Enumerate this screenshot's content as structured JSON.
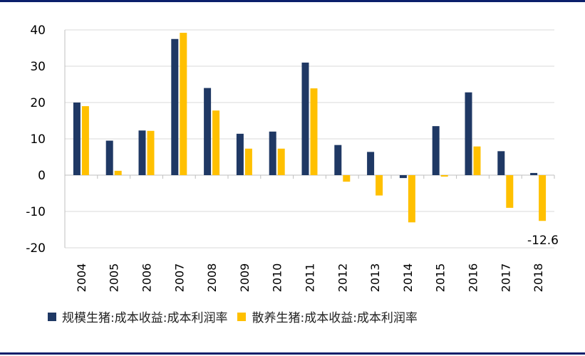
{
  "chart_data": {
    "type": "bar",
    "categories": [
      "2004",
      "2005",
      "2006",
      "2007",
      "2008",
      "2009",
      "2010",
      "2011",
      "2012",
      "2013",
      "2014",
      "2015",
      "2016",
      "2017",
      "2018"
    ],
    "series": [
      {
        "name": "规模生猪:成本收益:成本利润率",
        "color": "#1f3864",
        "values": [
          20.0,
          9.5,
          12.3,
          37.5,
          24.0,
          11.4,
          12.0,
          31.0,
          8.3,
          6.4,
          -0.8,
          13.5,
          22.8,
          6.6,
          0.6
        ]
      },
      {
        "name": "散养生猪:成本收益:成本利润率",
        "color": "#ffc000",
        "values": [
          19.0,
          1.2,
          12.2,
          39.2,
          17.8,
          7.3,
          7.3,
          23.9,
          -1.8,
          -5.6,
          -13.0,
          -0.4,
          7.9,
          -9.0,
          -12.6
        ]
      }
    ],
    "yticks": [
      "40",
      "30",
      "20",
      "10",
      "0",
      "-10",
      "-20"
    ],
    "ylim": [
      -20,
      40
    ],
    "annotations": [
      {
        "text": "-12.6"
      }
    ],
    "grid": true,
    "legend_position": "bottom"
  }
}
